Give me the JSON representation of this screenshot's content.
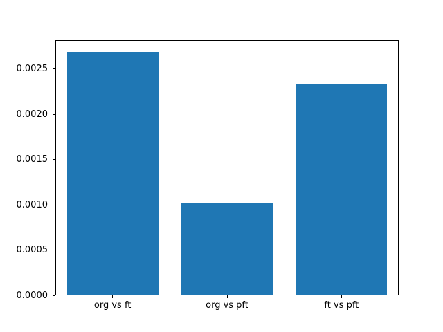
{
  "chart_data": {
    "type": "bar",
    "title": "",
    "xlabel": "",
    "ylabel": "",
    "categories": [
      "org vs ft",
      "org vs pft",
      "ft vs pft"
    ],
    "values": [
      0.00269,
      0.00102,
      0.00234
    ],
    "ylim": [
      0,
      0.00282
    ],
    "yticks": [
      0.0,
      0.0005,
      0.001,
      0.0015,
      0.002,
      0.0025
    ],
    "ytick_labels": [
      "0.0000",
      "0.0005",
      "0.0010",
      "0.0015",
      "0.0020",
      "0.0025"
    ],
    "bar_color": "#1f77b4",
    "bar_width_fraction": 0.8,
    "grid": false,
    "legend": null,
    "background_color": "#ffffff",
    "spine_color": "#000000"
  }
}
